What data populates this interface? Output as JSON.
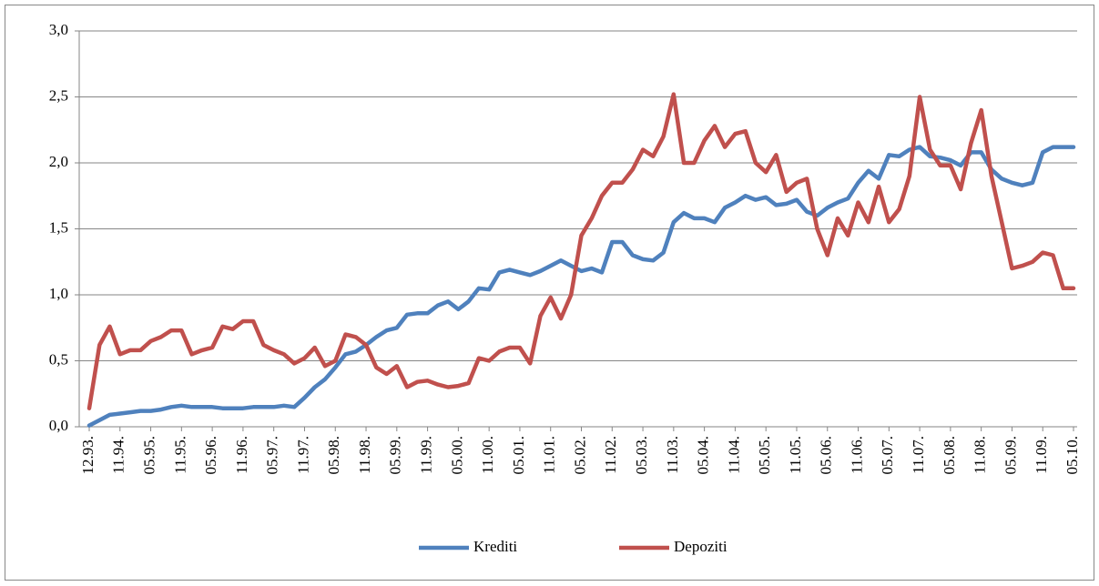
{
  "chart_data": {
    "type": "line",
    "categories": [
      "12.93.",
      null,
      null,
      "11.94.",
      null,
      null,
      "05.95.",
      null,
      null,
      "11.95.",
      null,
      null,
      "05.96.",
      null,
      null,
      "11.96.",
      null,
      null,
      "05.97.",
      null,
      null,
      "11.97.",
      null,
      null,
      "05.98.",
      null,
      null,
      "11.98.",
      null,
      null,
      "05.99.",
      null,
      null,
      "11.99.",
      null,
      null,
      "05.00.",
      null,
      null,
      "11.00.",
      null,
      null,
      "05.01.",
      null,
      null,
      "11.01.",
      null,
      null,
      "05.02.",
      null,
      null,
      "11.02.",
      null,
      null,
      "05.03.",
      null,
      null,
      "11.03.",
      null,
      null,
      "05.04.",
      null,
      null,
      "11.04.",
      null,
      null,
      "05.05.",
      null,
      null,
      "11.05.",
      null,
      null,
      "05.06.",
      null,
      null,
      "11.06.",
      null,
      null,
      "05.07.",
      null,
      null,
      "11.07.",
      null,
      null,
      "05.08.",
      null,
      null,
      "11.08.",
      null,
      null,
      "05.09.",
      null,
      null,
      "11.09.",
      null,
      null,
      "05.10."
    ],
    "series": [
      {
        "name": "Krediti",
        "color": "#4f81bd",
        "values": [
          0.01,
          0.05,
          0.09,
          0.1,
          0.11,
          0.12,
          0.12,
          0.13,
          0.15,
          0.16,
          0.15,
          0.15,
          0.15,
          0.14,
          0.14,
          0.14,
          0.15,
          0.15,
          0.15,
          0.16,
          0.15,
          0.22,
          0.3,
          0.36,
          0.45,
          0.55,
          0.57,
          0.62,
          0.68,
          0.73,
          0.75,
          0.85,
          0.86,
          0.86,
          0.92,
          0.95,
          0.89,
          0.95,
          1.05,
          1.04,
          1.17,
          1.19,
          1.17,
          1.15,
          1.18,
          1.22,
          1.26,
          1.22,
          1.18,
          1.2,
          1.17,
          1.4,
          1.4,
          1.3,
          1.27,
          1.26,
          1.32,
          1.55,
          1.62,
          1.58,
          1.58,
          1.55,
          1.66,
          1.7,
          1.75,
          1.72,
          1.74,
          1.68,
          1.69,
          1.72,
          1.63,
          1.6,
          1.66,
          1.7,
          1.73,
          1.85,
          1.94,
          1.88,
          2.06,
          2.05,
          2.1,
          2.12,
          2.05,
          2.04,
          2.02,
          1.98,
          2.08,
          2.08,
          1.95,
          1.88,
          1.85,
          1.83,
          1.85,
          2.08,
          2.12,
          2.12,
          2.12
        ]
      },
      {
        "name": "Depoziti",
        "color": "#c0504d",
        "values": [
          0.14,
          0.62,
          0.76,
          0.55,
          0.58,
          0.58,
          0.65,
          0.68,
          0.73,
          0.73,
          0.55,
          0.58,
          0.6,
          0.76,
          0.74,
          0.8,
          0.8,
          0.62,
          0.58,
          0.55,
          0.48,
          0.52,
          0.6,
          0.46,
          0.5,
          0.7,
          0.68,
          0.62,
          0.45,
          0.4,
          0.46,
          0.3,
          0.34,
          0.35,
          0.32,
          0.3,
          0.31,
          0.33,
          0.52,
          0.5,
          0.57,
          0.6,
          0.6,
          0.48,
          0.84,
          0.98,
          0.82,
          1.0,
          1.45,
          1.58,
          1.75,
          1.85,
          1.85,
          1.95,
          2.1,
          2.05,
          2.2,
          2.52,
          2.0,
          2.0,
          2.17,
          2.28,
          2.12,
          2.22,
          2.24,
          2.0,
          1.93,
          2.06,
          1.78,
          1.85,
          1.88,
          1.5,
          1.3,
          1.58,
          1.45,
          1.7,
          1.55,
          1.82,
          1.55,
          1.65,
          1.9,
          2.5,
          2.1,
          1.98,
          1.98,
          1.8,
          2.15,
          2.4,
          1.9,
          1.55,
          1.2,
          1.22,
          1.25,
          1.32,
          1.3,
          1.05,
          1.05
        ]
      }
    ],
    "ylim": [
      0,
      3
    ],
    "yticks": [
      {
        "value": 0,
        "label": "0,0"
      },
      {
        "value": 0.5,
        "label": "0,5"
      },
      {
        "value": 1,
        "label": "1,0"
      },
      {
        "value": 1.5,
        "label": "1,5"
      },
      {
        "value": 2,
        "label": "2,0"
      },
      {
        "value": 2.5,
        "label": "2,5"
      },
      {
        "value": 3,
        "label": "3,0"
      }
    ],
    "grid": true,
    "legend": "bottom"
  }
}
